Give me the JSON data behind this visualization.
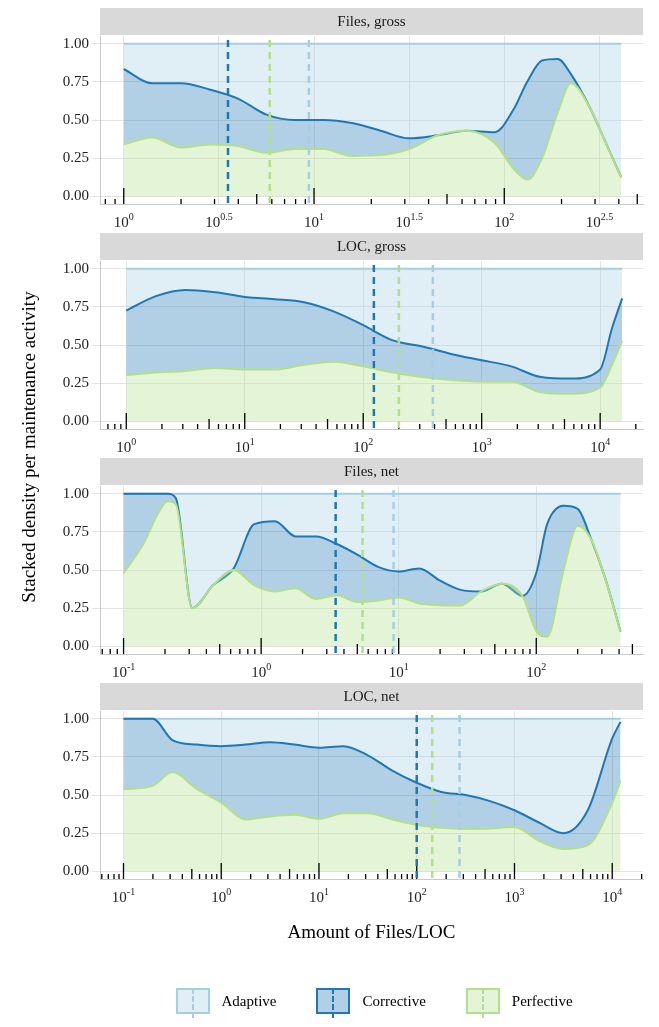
{
  "chart_data": [
    {
      "type": "area",
      "stacked": true,
      "log": "x",
      "grid": true,
      "title": "Files, gross",
      "ylabel": "Stacked density per maintenance activity",
      "x": [
        1,
        1.41,
        2.0,
        2.82,
        3.98,
        5.62,
        7.94,
        11.2,
        15.8,
        22.4,
        31.6,
        44.7,
        63.1,
        89.1,
        112,
        132,
        158,
        191,
        224,
        282,
        339,
        412
      ],
      "xlim": [
        0.75,
        536
      ],
      "xticks": [
        {
          "value": 0.8,
          "label": null
        },
        {
          "value": 0.9,
          "label": null
        },
        {
          "value": 1,
          "label": "10$^{0}$"
        },
        {
          "value": 2,
          "label": null
        },
        {
          "value": 3,
          "label": null
        },
        {
          "value": 3.162,
          "label": "10$^{0.5}$"
        },
        {
          "value": 4,
          "label": null
        },
        {
          "value": 5,
          "label": null
        },
        {
          "value": 6,
          "label": null
        },
        {
          "value": 7,
          "label": null
        },
        {
          "value": 8,
          "label": null
        },
        {
          "value": 9,
          "label": null
        },
        {
          "value": 10,
          "label": "10$^{1}$"
        },
        {
          "value": 20,
          "label": null
        },
        {
          "value": 30,
          "label": null
        },
        {
          "value": 31.62,
          "label": "10$^{1.5}$"
        },
        {
          "value": 40,
          "label": null
        },
        {
          "value": 50,
          "label": null
        },
        {
          "value": 60,
          "label": null
        },
        {
          "value": 70,
          "label": null
        },
        {
          "value": 80,
          "label": null
        },
        {
          "value": 90,
          "label": null
        },
        {
          "value": 100,
          "label": "10$^{2}$"
        },
        {
          "value": 200,
          "label": null
        },
        {
          "value": 300,
          "label": null
        },
        {
          "value": 316.2,
          "label": "10$^{2.5}$"
        },
        {
          "value": 400,
          "label": null
        },
        {
          "value": 500,
          "label": null
        }
      ],
      "ylim": [
        -0.05,
        1.05
      ],
      "yticks": [
        {
          "value": 0,
          "label": "0.00"
        },
        {
          "value": 0.25,
          "label": "0.25"
        },
        {
          "value": 0.5,
          "label": "0.50"
        },
        {
          "value": 0.75,
          "label": "0.75"
        },
        {
          "value": 1,
          "label": "1.00"
        }
      ],
      "ref_lines": [
        {
          "axis": "x",
          "value": 3.53,
          "color": "#1f78b4",
          "line_style": "dashed"
        },
        {
          "axis": "x",
          "value": 5.85,
          "color": "#b2df8a",
          "line_style": "dashed"
        },
        {
          "axis": "x",
          "value": 9.4,
          "color": "#a6cee3",
          "line_style": "dashed"
        }
      ],
      "series": [
        {
          "color": "#b2df8a",
          "values": [
            0.342,
            0.385,
            0.32,
            0.34,
            0.33,
            0.285,
            0.31,
            0.31,
            0.265,
            0.27,
            0.31,
            0.4,
            0.43,
            0.35,
            0.18,
            0.11,
            0.25,
            0.55,
            0.74,
            0.58,
            0.36,
            0.124
          ]
        },
        {
          "color": "#1f78b4",
          "values": [
            0.492,
            0.355,
            0.42,
            0.36,
            0.31,
            0.25,
            0.19,
            0.19,
            0.215,
            0.16,
            0.07,
            0,
            0,
            0.07,
            0.39,
            0.64,
            0.64,
            0.35,
            0.06,
            0,
            0,
            0
          ]
        },
        {
          "color": "#a6cee3",
          "values": [
            0.166,
            0.26,
            0.26,
            0.3,
            0.36,
            0.465,
            0.5,
            0.5,
            0.52,
            0.57,
            0.62,
            0.6,
            0.57,
            0.58,
            0.43,
            0.25,
            0.11,
            0.1,
            0.2,
            0.42,
            0.64,
            0.876
          ]
        }
      ]
    },
    {
      "type": "area",
      "stacked": true,
      "log": "x",
      "grid": true,
      "title": "LOC, gross",
      "x": [
        1,
        1.78,
        3.16,
        5.62,
        10,
        17.8,
        31.6,
        56.2,
        100,
        178,
        316,
        562,
        1000,
        1778,
        3162,
        5623,
        10000,
        12589,
        15350
      ],
      "xlim": [
        0.63,
        23000
      ],
      "xticks": [
        {
          "value": 0.7,
          "label": null
        },
        {
          "value": 0.8,
          "label": null
        },
        {
          "value": 0.9,
          "label": null
        },
        {
          "value": 1,
          "label": "10$^{0}$"
        },
        {
          "value": 2,
          "label": null
        },
        {
          "value": 3,
          "label": null
        },
        {
          "value": 4,
          "label": null
        },
        {
          "value": 5,
          "label": null
        },
        {
          "value": 6,
          "label": null
        },
        {
          "value": 7,
          "label": null
        },
        {
          "value": 8,
          "label": null
        },
        {
          "value": 9,
          "label": null
        },
        {
          "value": 10,
          "label": "10$^{1}$"
        },
        {
          "value": 20,
          "label": null
        },
        {
          "value": 30,
          "label": null
        },
        {
          "value": 40,
          "label": null
        },
        {
          "value": 50,
          "label": null
        },
        {
          "value": 60,
          "label": null
        },
        {
          "value": 70,
          "label": null
        },
        {
          "value": 80,
          "label": null
        },
        {
          "value": 90,
          "label": null
        },
        {
          "value": 100,
          "label": "10$^{2}$"
        },
        {
          "value": 200,
          "label": null
        },
        {
          "value": 300,
          "label": null
        },
        {
          "value": 400,
          "label": null
        },
        {
          "value": 500,
          "label": null
        },
        {
          "value": 600,
          "label": null
        },
        {
          "value": 700,
          "label": null
        },
        {
          "value": 800,
          "label": null
        },
        {
          "value": 900,
          "label": null
        },
        {
          "value": 1000,
          "label": "10$^{3}$"
        },
        {
          "value": 2000,
          "label": null
        },
        {
          "value": 3000,
          "label": null
        },
        {
          "value": 4000,
          "label": null
        },
        {
          "value": 5000,
          "label": null
        },
        {
          "value": 6000,
          "label": null
        },
        {
          "value": 7000,
          "label": null
        },
        {
          "value": 8000,
          "label": null
        },
        {
          "value": 9000,
          "label": null
        },
        {
          "value": 10000,
          "label": "10$^{4}$"
        },
        {
          "value": 20000,
          "label": null
        }
      ],
      "ylim": [
        -0.05,
        1.05
      ],
      "yticks": [
        {
          "value": 0,
          "label": "0.00"
        },
        {
          "value": 0.25,
          "label": "0.25"
        },
        {
          "value": 0.5,
          "label": "0.50"
        },
        {
          "value": 0.75,
          "label": "0.75"
        },
        {
          "value": 1,
          "label": "1.00"
        }
      ],
      "ref_lines": [
        {
          "axis": "x",
          "value": 123,
          "color": "#1f78b4",
          "line_style": "dashed"
        },
        {
          "axis": "x",
          "value": 200,
          "color": "#b2df8a",
          "line_style": "dashed"
        },
        {
          "axis": "x",
          "value": 387,
          "color": "#a6cee3",
          "line_style": "dashed"
        }
      ],
      "series": [
        {
          "color": "#b2df8a",
          "values": [
            0.303,
            0.32,
            0.33,
            0.35,
            0.34,
            0.34,
            0.37,
            0.39,
            0.36,
            0.32,
            0.29,
            0.27,
            0.26,
            0.26,
            0.19,
            0.18,
            0.22,
            0.37,
            0.528
          ]
        },
        {
          "color": "#1f78b4",
          "values": [
            0.423,
            0.5,
            0.53,
            0.495,
            0.475,
            0.46,
            0.41,
            0.33,
            0.27,
            0.21,
            0.2,
            0.17,
            0.14,
            0.1,
            0.1,
            0.1,
            0.12,
            0.24,
            0.277
          ]
        },
        {
          "color": "#a6cee3",
          "values": [
            0.274,
            0.18,
            0.14,
            0.155,
            0.185,
            0.2,
            0.22,
            0.28,
            0.37,
            0.47,
            0.51,
            0.56,
            0.6,
            0.64,
            0.71,
            0.72,
            0.66,
            0.39,
            0.195
          ]
        }
      ]
    },
    {
      "type": "area",
      "stacked": true,
      "log": "x",
      "grid": true,
      "title": "Files, net",
      "x": [
        0.1,
        0.141,
        0.178,
        0.209,
        0.24,
        0.316,
        0.447,
        0.631,
        0.891,
        1.26,
        1.78,
        2.51,
        3.55,
        5.01,
        7.08,
        10,
        14.1,
        20,
        28.2,
        39.8,
        56.2,
        79.4,
        100,
        120,
        158,
        200,
        251,
        316,
        410
      ],
      "xlim": [
        0.0674,
        597
      ],
      "xticks": [
        {
          "value": 0.07,
          "label": null
        },
        {
          "value": 0.08,
          "label": null
        },
        {
          "value": 0.09,
          "label": null
        },
        {
          "value": 0.1,
          "label": "10$^{-1}$"
        },
        {
          "value": 0.2,
          "label": null
        },
        {
          "value": 0.3,
          "label": null
        },
        {
          "value": 0.4,
          "label": null
        },
        {
          "value": 0.5,
          "label": null
        },
        {
          "value": 0.6,
          "label": null
        },
        {
          "value": 0.7,
          "label": null
        },
        {
          "value": 0.8,
          "label": null
        },
        {
          "value": 0.9,
          "label": null
        },
        {
          "value": 1,
          "label": "10$^{0}$"
        },
        {
          "value": 2,
          "label": null
        },
        {
          "value": 3,
          "label": null
        },
        {
          "value": 4,
          "label": null
        },
        {
          "value": 5,
          "label": null
        },
        {
          "value": 6,
          "label": null
        },
        {
          "value": 7,
          "label": null
        },
        {
          "value": 8,
          "label": null
        },
        {
          "value": 9,
          "label": null
        },
        {
          "value": 10,
          "label": "10$^{1}$"
        },
        {
          "value": 20,
          "label": null
        },
        {
          "value": 30,
          "label": null
        },
        {
          "value": 40,
          "label": null
        },
        {
          "value": 50,
          "label": null
        },
        {
          "value": 60,
          "label": null
        },
        {
          "value": 70,
          "label": null
        },
        {
          "value": 80,
          "label": null
        },
        {
          "value": 90,
          "label": null
        },
        {
          "value": 100,
          "label": "10$^{2}$"
        },
        {
          "value": 200,
          "label": null
        },
        {
          "value": 300,
          "label": null
        },
        {
          "value": 400,
          "label": null
        },
        {
          "value": 500,
          "label": null
        }
      ],
      "ylim": [
        -0.05,
        1.05
      ],
      "yticks": [
        {
          "value": 0,
          "label": "0.00"
        },
        {
          "value": 0.25,
          "label": "0.25"
        },
        {
          "value": 0.5,
          "label": "0.50"
        },
        {
          "value": 0.75,
          "label": "0.75"
        },
        {
          "value": 1,
          "label": "1.00"
        }
      ],
      "ref_lines": [
        {
          "axis": "x",
          "value": 3.48,
          "color": "#1f78b4",
          "line_style": "dashed"
        },
        {
          "axis": "x",
          "value": 5.46,
          "color": "#b2df8a",
          "line_style": "dashed"
        },
        {
          "axis": "x",
          "value": 9.18,
          "color": "#a6cee3",
          "line_style": "dashed"
        }
      ],
      "series": [
        {
          "color": "#b2df8a",
          "values": [
            0.479,
            0.68,
            0.87,
            0.95,
            0.93,
            0.25,
            0.4,
            0.5,
            0.4,
            0.36,
            0.38,
            0.31,
            0.335,
            0.29,
            0.3,
            0.32,
            0.28,
            0.27,
            0.268,
            0.36,
            0.41,
            0.33,
            0.1,
            0.063,
            0.5,
            0.79,
            0.7,
            0.45,
            0.097
          ]
        },
        {
          "color": "#1f78b4",
          "values": [
            0.521,
            0.32,
            0.13,
            0.05,
            0.04,
            0,
            0,
            0.01,
            0.4,
            0.46,
            0.34,
            0.41,
            0.335,
            0.31,
            0.22,
            0.17,
            0.23,
            0.16,
            0.102,
            0,
            0,
            0,
            0.38,
            0.737,
            0.42,
            0.11,
            0,
            0,
            0
          ]
        },
        {
          "color": "#a6cee3",
          "values": [
            0,
            0,
            0,
            0,
            0.03,
            0.75,
            0.6,
            0.49,
            0.2,
            0.18,
            0.28,
            0.28,
            0.33,
            0.4,
            0.48,
            0.51,
            0.49,
            0.57,
            0.63,
            0.64,
            0.59,
            0.67,
            0.52,
            0.2,
            0.08,
            0.1,
            0.3,
            0.55,
            0.903
          ]
        }
      ]
    },
    {
      "type": "area",
      "stacked": true,
      "log": "x",
      "grid": true,
      "title": "LOC, net",
      "xlabel": "Amount of Files/LOC",
      "legend": "bottom",
      "x": [
        0.1,
        0.2,
        0.316,
        0.562,
        1,
        1.78,
        3.16,
        5.62,
        10,
        17.8,
        31.6,
        56.2,
        100,
        178,
        316,
        562,
        1000,
        1778,
        3162,
        5623,
        10000,
        12160
      ],
      "xlim": [
        0.0575,
        20650
      ],
      "xticks": [
        {
          "value": 0.06,
          "label": null
        },
        {
          "value": 0.07,
          "label": null
        },
        {
          "value": 0.08,
          "label": null
        },
        {
          "value": 0.09,
          "label": null
        },
        {
          "value": 0.1,
          "label": "10$^{-1}$"
        },
        {
          "value": 0.2,
          "label": null
        },
        {
          "value": 0.3,
          "label": null
        },
        {
          "value": 0.4,
          "label": null
        },
        {
          "value": 0.5,
          "label": null
        },
        {
          "value": 0.6,
          "label": null
        },
        {
          "value": 0.7,
          "label": null
        },
        {
          "value": 0.8,
          "label": null
        },
        {
          "value": 0.9,
          "label": null
        },
        {
          "value": 1,
          "label": "10$^{0}$"
        },
        {
          "value": 2,
          "label": null
        },
        {
          "value": 3,
          "label": null
        },
        {
          "value": 4,
          "label": null
        },
        {
          "value": 5,
          "label": null
        },
        {
          "value": 6,
          "label": null
        },
        {
          "value": 7,
          "label": null
        },
        {
          "value": 8,
          "label": null
        },
        {
          "value": 9,
          "label": null
        },
        {
          "value": 10,
          "label": "10$^{1}$"
        },
        {
          "value": 20,
          "label": null
        },
        {
          "value": 30,
          "label": null
        },
        {
          "value": 40,
          "label": null
        },
        {
          "value": 50,
          "label": null
        },
        {
          "value": 60,
          "label": null
        },
        {
          "value": 70,
          "label": null
        },
        {
          "value": 80,
          "label": null
        },
        {
          "value": 90,
          "label": null
        },
        {
          "value": 100,
          "label": "10$^{2}$"
        },
        {
          "value": 200,
          "label": null
        },
        {
          "value": 300,
          "label": null
        },
        {
          "value": 400,
          "label": null
        },
        {
          "value": 500,
          "label": null
        },
        {
          "value": 600,
          "label": null
        },
        {
          "value": 700,
          "label": null
        },
        {
          "value": 800,
          "label": null
        },
        {
          "value": 900,
          "label": null
        },
        {
          "value": 1000,
          "label": "10$^{3}$"
        },
        {
          "value": 2000,
          "label": null
        },
        {
          "value": 3000,
          "label": null
        },
        {
          "value": 4000,
          "label": null
        },
        {
          "value": 5000,
          "label": null
        },
        {
          "value": 6000,
          "label": null
        },
        {
          "value": 7000,
          "label": null
        },
        {
          "value": 8000,
          "label": null
        },
        {
          "value": 9000,
          "label": null
        },
        {
          "value": 10000,
          "label": "10$^{4}$"
        },
        {
          "value": 20000,
          "label": null
        }
      ],
      "ylim": [
        -0.05,
        1.05
      ],
      "yticks": [
        {
          "value": 0,
          "label": "0.00"
        },
        {
          "value": 0.25,
          "label": "0.25"
        },
        {
          "value": 0.5,
          "label": "0.50"
        },
        {
          "value": 0.75,
          "label": "0.75"
        },
        {
          "value": 1,
          "label": "1.00"
        }
      ],
      "ref_lines": [
        {
          "axis": "x",
          "value": 100,
          "color": "#1f78b4",
          "line_style": "dashed"
        },
        {
          "axis": "x",
          "value": 144,
          "color": "#b2df8a",
          "line_style": "dashed"
        },
        {
          "axis": "x",
          "value": 274,
          "color": "#a6cee3",
          "line_style": "dashed"
        }
      ],
      "series": [
        {
          "name": "Perfective",
          "color": "#b2df8a",
          "values": [
            0.537,
            0.56,
            0.65,
            0.54,
            0.45,
            0.34,
            0.36,
            0.37,
            0.344,
            0.38,
            0.38,
            0.34,
            0.304,
            0.285,
            0.278,
            0.28,
            0.291,
            0.2,
            0.146,
            0.172,
            0.45,
            0.595
          ]
        },
        {
          "name": "Corrective",
          "color": "#1f78b4",
          "values": [
            0.463,
            0.44,
            0.21,
            0.29,
            0.37,
            0.49,
            0.485,
            0.46,
            0.466,
            0.44,
            0.38,
            0.32,
            0.276,
            0.235,
            0.222,
            0.18,
            0.109,
            0.12,
            0.104,
            0.228,
            0.42,
            0.384
          ]
        },
        {
          "name": "Adaptive",
          "color": "#a6cee3",
          "values": [
            0,
            0,
            0.14,
            0.17,
            0.18,
            0.17,
            0.155,
            0.17,
            0.19,
            0.18,
            0.24,
            0.34,
            0.42,
            0.48,
            0.5,
            0.54,
            0.6,
            0.68,
            0.75,
            0.6,
            0.13,
            0.021
          ]
        }
      ]
    }
  ]
}
